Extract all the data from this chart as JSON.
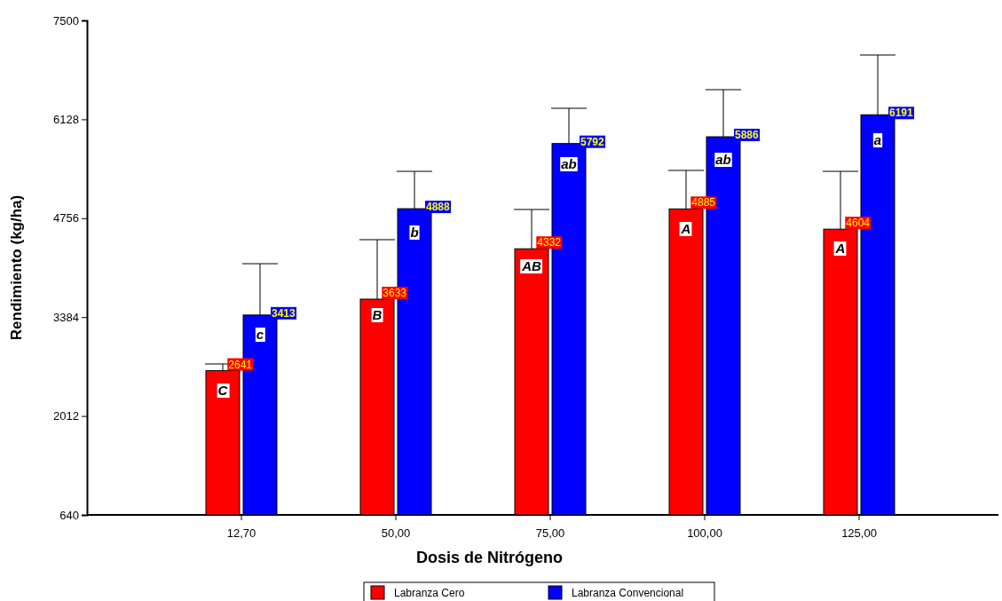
{
  "chart_data": {
    "type": "bar",
    "xlabel": "Dosis de Nitrógeno",
    "ylabel": "Rendimiento (kg/ha)",
    "categories": [
      "12,70",
      "50,00",
      "75,00",
      "100,00",
      "125,00"
    ],
    "series": [
      {
        "name": "Labranza Cero",
        "color": "#ff0000",
        "values": [
          2641,
          3633,
          4332,
          4885,
          4604
        ],
        "errors": [
          [
            2641,
            2734
          ],
          [
            3633,
            4458
          ],
          [
            4332,
            4877
          ],
          [
            4885,
            5419
          ],
          [
            4604,
            5406
          ]
        ]
      },
      {
        "name": "Labranza Convencional",
        "color": "#0000ff",
        "values": [
          3413,
          4888,
          5792,
          5886,
          6191
        ],
        "errors": [
          [
            3413,
            4125
          ],
          [
            4888,
            5406
          ],
          [
            5792,
            6281
          ],
          [
            5886,
            6539
          ],
          [
            6191,
            7020
          ]
        ]
      }
    ],
    "ylim": [
      640,
      7500
    ],
    "yticks": [
      640,
      2012,
      3384,
      4756,
      6128,
      7500
    ],
    "data_labels": true,
    "legend": "bottom",
    "annotations": [
      {
        "text": "C",
        "x": "12,70",
        "y": 2364
      },
      {
        "text": "B",
        "x": "50,00",
        "y": 3411
      },
      {
        "text": "AB",
        "x": "75,00",
        "y": 4088
      },
      {
        "text": "A",
        "x": "100,00",
        "y": 4606
      },
      {
        "text": "A",
        "x": "125,00",
        "y": 4335
      },
      {
        "text": "c",
        "x": "12,70",
        "y": 3140
      },
      {
        "text": "b",
        "x": "50,00",
        "y": 4557
      },
      {
        "text": "ab",
        "x": "75,00",
        "y": 5505
      },
      {
        "text": "ab",
        "x": "100,00",
        "y": 5566
      },
      {
        "text": "a",
        "x": "125,00",
        "y": 5837
      }
    ]
  }
}
